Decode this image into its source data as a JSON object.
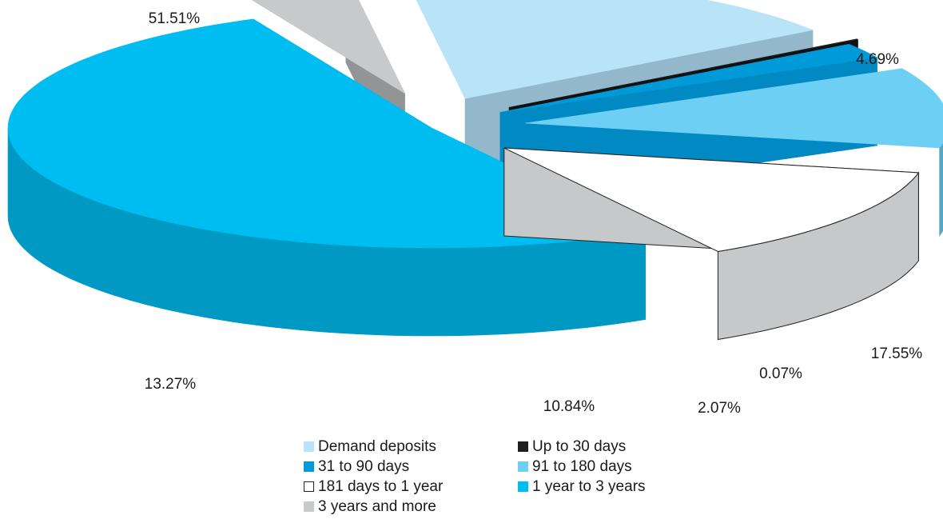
{
  "chart_data": {
    "type": "pie",
    "slices": [
      {
        "category": "Demand deposits",
        "value": 17.55,
        "label": "17.55%",
        "color": "#b9e4f8",
        "side": "#94b8cb"
      },
      {
        "category": "Up to 30 days",
        "value": 0.07,
        "label": "0.07%",
        "color": "#1f1f1f",
        "side": "#111111"
      },
      {
        "category": "31 to 90 days",
        "value": 2.07,
        "label": "2.07%",
        "color": "#009ad8",
        "side": "#0089c2"
      },
      {
        "category": "91 to 180 days",
        "value": 10.84,
        "label": "10.84%",
        "color": "#6ecff5",
        "side": "#57a7c4"
      },
      {
        "category": "181 days to 1 year",
        "value": 13.27,
        "label": "13.27%",
        "color": "#ffffff",
        "side": "#c6c8ca"
      },
      {
        "category": "1 year to 3 years",
        "value": 51.51,
        "label": "51.51%",
        "color": "#00bdf1",
        "side": "#0099c4"
      },
      {
        "category": "3 years and more",
        "value": 4.69,
        "label": "4.69%",
        "color": "#c8c9ca",
        "side": "#939496"
      }
    ],
    "legend_position": "bottom"
  }
}
